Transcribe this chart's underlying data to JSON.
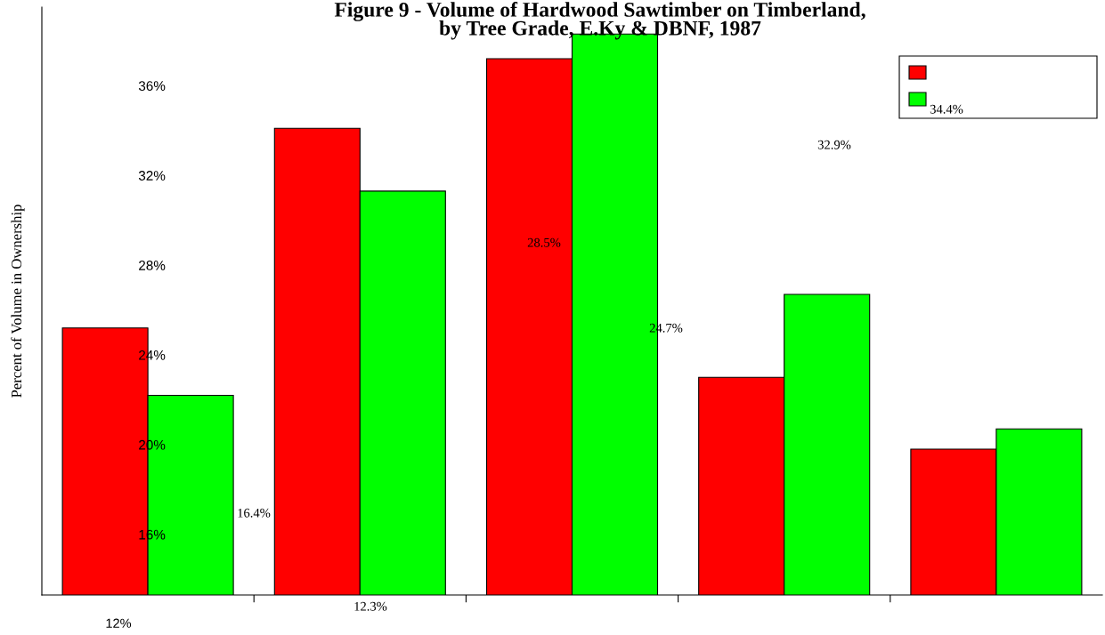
{
  "chart_data": {
    "type": "bar",
    "title": "Figure 9 - Volume of Hardwood Sawtimber on Timberland,\nby Tree Grade, E.Ky & DBNF, 1987",
    "ylabel": "Percent of Volume in Ownership",
    "categories": [
      null,
      null,
      null,
      null,
      null
    ],
    "series": [
      {
        "color": "#ff0000",
        "values": [
          25.2,
          34.1,
          37.2,
          23.0,
          19.8
        ]
      },
      {
        "color": "#00ff00",
        "values": [
          22.2,
          31.3,
          38.3,
          26.7,
          20.7
        ]
      }
    ],
    "ylim": [
      13.3,
      39.5
    ],
    "yticks": [
      {
        "value": 16,
        "label": "16%"
      },
      {
        "value": 20,
        "label": "20%"
      },
      {
        "value": 24,
        "label": "24%"
      },
      {
        "value": 28,
        "label": "28%"
      },
      {
        "value": 32,
        "label": "32%"
      },
      {
        "value": 36,
        "label": "36%"
      }
    ],
    "annotations": [
      "12%",
      "16.4%",
      "12.3%",
      "28.5%",
      "24.7%",
      "32.9%",
      "34.4%"
    ],
    "grid": false
  }
}
